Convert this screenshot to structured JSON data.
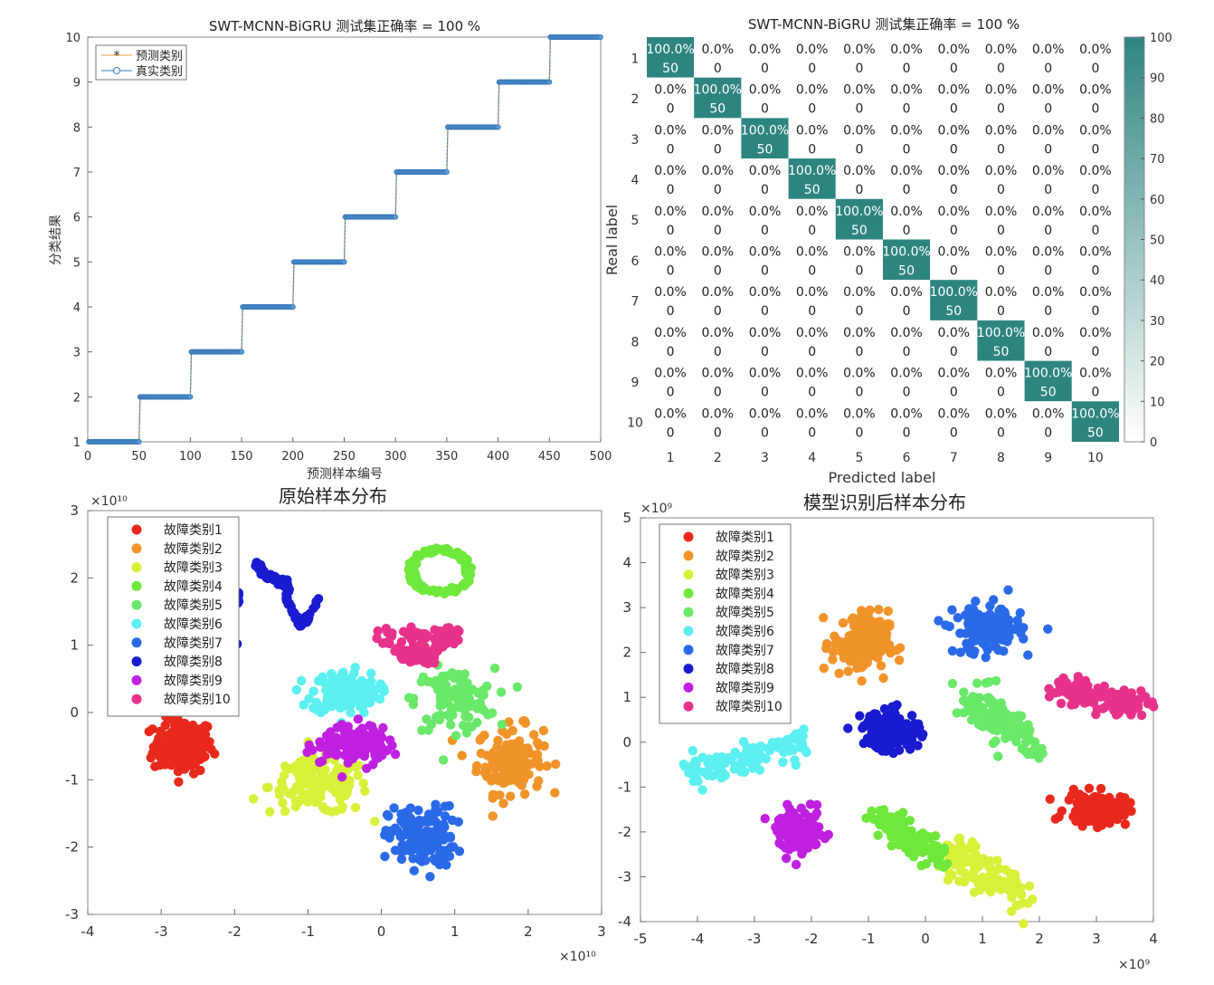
{
  "chart_data": [
    {
      "type": "line",
      "title": "SWT-MCNN-BiGRU 测试集正确率 = 100 %",
      "xlabel": "预测样本编号",
      "ylabel": "分类结果",
      "xlim": [
        0,
        500
      ],
      "ylim": [
        1,
        10
      ],
      "xticks": [
        0,
        50,
        100,
        150,
        200,
        250,
        300,
        350,
        400,
        450,
        500
      ],
      "yticks": [
        1,
        2,
        3,
        4,
        5,
        6,
        7,
        8,
        9,
        10
      ],
      "legend_position": "top-left",
      "series": [
        {
          "name": "预测类别",
          "color": "#f0a030",
          "marker": "star",
          "steps": [
            {
              "from": 1,
              "to": 50,
              "y": 1
            },
            {
              "from": 51,
              "to": 100,
              "y": 2
            },
            {
              "from": 101,
              "to": 150,
              "y": 3
            },
            {
              "from": 151,
              "to": 200,
              "y": 4
            },
            {
              "from": 201,
              "to": 250,
              "y": 5
            },
            {
              "from": 251,
              "to": 300,
              "y": 6
            },
            {
              "from": 301,
              "to": 350,
              "y": 7
            },
            {
              "from": 351,
              "to": 400,
              "y": 8
            },
            {
              "from": 401,
              "to": 450,
              "y": 9
            },
            {
              "from": 451,
              "to": 500,
              "y": 10
            }
          ]
        },
        {
          "name": "真实类别",
          "color": "#3a7ab8",
          "marker": "circle",
          "steps": [
            {
              "from": 1,
              "to": 50,
              "y": 1
            },
            {
              "from": 51,
              "to": 100,
              "y": 2
            },
            {
              "from": 101,
              "to": 150,
              "y": 3
            },
            {
              "from": 151,
              "to": 200,
              "y": 4
            },
            {
              "from": 201,
              "to": 250,
              "y": 5
            },
            {
              "from": 251,
              "to": 300,
              "y": 6
            },
            {
              "from": 301,
              "to": 350,
              "y": 7
            },
            {
              "from": 351,
              "to": 400,
              "y": 8
            },
            {
              "from": 401,
              "to": 450,
              "y": 9
            },
            {
              "from": 451,
              "to": 500,
              "y": 10
            }
          ]
        }
      ]
    },
    {
      "type": "heatmap",
      "title": "SWT-MCNN-BiGRU 测试集正确率 = 100 %",
      "xlabel": "Predicted label",
      "ylabel": "Real label",
      "labels": [
        "1",
        "2",
        "3",
        "4",
        "5",
        "6",
        "7",
        "8",
        "9",
        "10"
      ],
      "diag_count": 50,
      "diag_pct": "100.0%",
      "off_count": 0,
      "off_pct": "0.0%",
      "colorbar_ticks": [
        0,
        10,
        20,
        30,
        40,
        50,
        60,
        70,
        80,
        90,
        100
      ],
      "colorbar_range": [
        0,
        100
      ],
      "colors": {
        "high": "#2e8580",
        "low": "#ffffff"
      }
    },
    {
      "type": "scatter",
      "title": "原始样本分布",
      "xlim": [
        -4,
        3
      ],
      "ylim": [
        -3,
        3
      ],
      "xticks": [
        -4,
        -3,
        -2,
        -1,
        0,
        1,
        2,
        3
      ],
      "yticks": [
        -3,
        -2,
        -1,
        0,
        1,
        2,
        3
      ],
      "x_exponent": "×10¹⁰",
      "y_exponent": "×10¹⁰",
      "legend_position": "top-left",
      "series": [
        {
          "name": "故障类别1",
          "color": "#e8291c",
          "shape": "blob",
          "cx": -2.7,
          "cy": -0.5,
          "rx": 0.45,
          "ry": 0.45,
          "n": 160
        },
        {
          "name": "故障类别2",
          "color": "#f0942a",
          "shape": "blob",
          "cx": 1.75,
          "cy": -0.7,
          "rx": 0.5,
          "ry": 0.55,
          "n": 130
        },
        {
          "name": "故障类别3",
          "color": "#d9f03a",
          "shape": "blob",
          "cx": -0.85,
          "cy": -1.1,
          "rx": 0.75,
          "ry": 0.45,
          "n": 150
        },
        {
          "name": "故障类别4",
          "color": "#6ee83a",
          "shape": "ring",
          "cx": 0.8,
          "cy": 2.1,
          "rx": 0.4,
          "ry": 0.32,
          "n": 110
        },
        {
          "name": "故障类别5",
          "color": "#6ae86a",
          "shape": "blob",
          "cx": 1.0,
          "cy": 0.2,
          "rx": 0.6,
          "ry": 0.5,
          "n": 110
        },
        {
          "name": "故障类别6",
          "color": "#5cf0f0",
          "shape": "blob",
          "cx": -0.5,
          "cy": 0.3,
          "rx": 0.5,
          "ry": 0.35,
          "n": 170
        },
        {
          "name": "故障类别7",
          "color": "#2a6ae8",
          "shape": "blob",
          "cx": 0.55,
          "cy": -1.85,
          "rx": 0.5,
          "ry": 0.5,
          "n": 150
        },
        {
          "name": "故障类别8",
          "color": "#1a1ad0",
          "shape": "arcs",
          "cx": -1.5,
          "cy": 1.4,
          "rx": 0.6,
          "ry": 0.6,
          "n": 130
        },
        {
          "name": "故障类别9",
          "color": "#c020e0",
          "shape": "blob",
          "cx": -0.35,
          "cy": -0.45,
          "rx": 0.5,
          "ry": 0.3,
          "n": 140
        },
        {
          "name": "故障类别10",
          "color": "#e8328a",
          "shape": "squiggle",
          "cx": 0.5,
          "cy": 1.0,
          "rx": 0.6,
          "ry": 0.5,
          "n": 130
        }
      ]
    },
    {
      "type": "scatter",
      "title": "模型识别后样本分布",
      "xlim": [
        -5,
        4
      ],
      "ylim": [
        -4,
        5
      ],
      "xticks": [
        -5,
        -4,
        -3,
        -2,
        -1,
        0,
        1,
        2,
        3,
        4
      ],
      "yticks": [
        -4,
        -3,
        -2,
        -1,
        0,
        1,
        2,
        3,
        4,
        5
      ],
      "x_exponent": "×10⁹",
      "y_exponent": "×10⁹",
      "legend_position": "top-left",
      "series": [
        {
          "name": "故障类别1",
          "color": "#e8291c",
          "shape": "blob",
          "cx": 3.0,
          "cy": -1.5,
          "rx": 0.6,
          "ry": 0.4,
          "n": 120
        },
        {
          "name": "故障类别2",
          "color": "#f0942a",
          "shape": "blob",
          "cx": -1.15,
          "cy": 2.2,
          "rx": 0.55,
          "ry": 0.8,
          "n": 150
        },
        {
          "name": "故障类别3",
          "color": "#d9f03a",
          "shape": "diag",
          "cx": 1.05,
          "cy": -2.9,
          "rx": 0.7,
          "ry": 0.7,
          "n": 110
        },
        {
          "name": "故障类别4",
          "color": "#6ee83a",
          "shape": "diag",
          "cx": -0.25,
          "cy": -2.1,
          "rx": 0.55,
          "ry": 0.45,
          "n": 130
        },
        {
          "name": "故障类别5",
          "color": "#6ae86a",
          "shape": "diag2",
          "cx": 1.3,
          "cy": 0.5,
          "rx": 0.6,
          "ry": 0.7,
          "n": 120
        },
        {
          "name": "故障类别6",
          "color": "#5cf0f0",
          "shape": "diag3",
          "cx": -3.1,
          "cy": -0.35,
          "rx": 1.0,
          "ry": 0.5,
          "n": 110
        },
        {
          "name": "故障类别7",
          "color": "#2a6ae8",
          "shape": "blob",
          "cx": 1.1,
          "cy": 2.5,
          "rx": 0.65,
          "ry": 0.6,
          "n": 160
        },
        {
          "name": "故障类别8",
          "color": "#1a1ad0",
          "shape": "blob",
          "cx": -0.6,
          "cy": 0.25,
          "rx": 0.55,
          "ry": 0.5,
          "n": 140
        },
        {
          "name": "故障类别9",
          "color": "#c020e0",
          "shape": "blob",
          "cx": -2.2,
          "cy": -2.0,
          "rx": 0.45,
          "ry": 0.55,
          "n": 110
        },
        {
          "name": "故障类别10",
          "color": "#e8328a",
          "shape": "diag4",
          "cx": 3.1,
          "cy": 1.0,
          "rx": 0.8,
          "ry": 0.45,
          "n": 120
        }
      ]
    }
  ]
}
